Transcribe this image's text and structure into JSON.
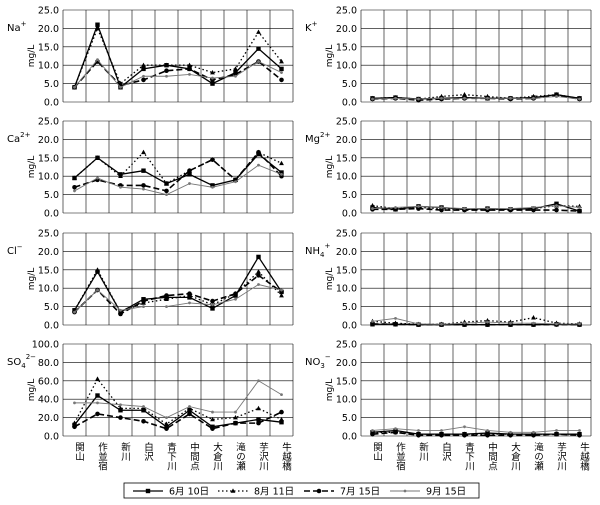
{
  "figure": {
    "legend": [
      {
        "name": "6月 10日",
        "style": "solid-square"
      },
      {
        "name": "8月 11日",
        "style": "dotted-triangle"
      },
      {
        "name": "7月 15日",
        "style": "dashed-circle"
      },
      {
        "name": "9月 15日",
        "style": "light-dot"
      }
    ],
    "colors": {
      "series_main": "#000000",
      "series_light": "#777777",
      "grid": "#000000"
    }
  },
  "chart_data": [
    {
      "type": "line",
      "ion": "Na",
      "ion_sup": "+",
      "ion_sub": "",
      "ylabel": "mg/L",
      "ylim": [
        0,
        25
      ],
      "yticks": [
        "0.0",
        "5.0",
        "10.0",
        "15.0",
        "20.0",
        "25.0"
      ],
      "categories": [
        "関山",
        "作並宿",
        "新川",
        "白沢",
        "青下川",
        "中間点",
        "大倉川",
        "滝の瀬",
        "芋沢川",
        "牛越橋"
      ],
      "show_xlabels": false,
      "series": [
        {
          "name": "6月 10日",
          "values": [
            4.0,
            21.0,
            4.0,
            9.0,
            10.0,
            9.0,
            5.0,
            8.0,
            14.5,
            9.0
          ]
        },
        {
          "name": "8月 11日",
          "values": [
            4.0,
            20.0,
            5.0,
            10.0,
            10.0,
            10.0,
            8.0,
            9.0,
            19.0,
            11.0
          ]
        },
        {
          "name": "7月 15日",
          "values": [
            4.0,
            11.0,
            4.5,
            6.0,
            8.5,
            9.0,
            6.0,
            7.5,
            11.0,
            6.0
          ]
        },
        {
          "name": "9月 15日",
          "values": [
            4.0,
            11.5,
            4.0,
            7.0,
            7.0,
            7.5,
            6.5,
            7.0,
            11.0,
            8.0
          ]
        }
      ]
    },
    {
      "type": "line",
      "ion": "K",
      "ion_sup": "+",
      "ion_sub": "",
      "ylabel": "mg/L",
      "ylim": [
        0,
        25
      ],
      "yticks": [
        "0.0",
        "5.0",
        "10.0",
        "15.0",
        "20.0",
        "25.0"
      ],
      "categories": [
        "関山",
        "作並宿",
        "新川",
        "白沢",
        "青下川",
        "中間点",
        "大倉川",
        "滝の瀬",
        "芋沢川",
        "牛越橋"
      ],
      "show_xlabels": false,
      "series": [
        {
          "name": "6月 10日",
          "values": [
            1.0,
            1.2,
            0.8,
            1.0,
            1.2,
            1.0,
            1.0,
            1.2,
            2.0,
            1.0
          ]
        },
        {
          "name": "8月 11日",
          "values": [
            1.0,
            1.2,
            0.8,
            1.5,
            2.0,
            1.5,
            1.0,
            1.5,
            2.0,
            1.0
          ]
        },
        {
          "name": "7月 15日",
          "values": [
            0.8,
            1.0,
            0.5,
            0.8,
            1.0,
            1.0,
            0.8,
            1.0,
            1.8,
            0.8
          ]
        },
        {
          "name": "9月 15日",
          "values": [
            0.8,
            1.0,
            0.8,
            1.0,
            1.0,
            1.0,
            1.0,
            1.0,
            1.5,
            0.8
          ]
        }
      ]
    },
    {
      "type": "line",
      "ion": "Ca",
      "ion_sup": "2+",
      "ion_sub": "",
      "ylabel": "mg/L",
      "ylim": [
        0,
        25
      ],
      "yticks": [
        "0.0",
        "5.0",
        "10.0",
        "15.0",
        "20.0",
        "25.0"
      ],
      "categories": [
        "関山",
        "作並宿",
        "新川",
        "白沢",
        "青下川",
        "中間点",
        "大倉川",
        "滝の瀬",
        "芋沢川",
        "牛越橋"
      ],
      "show_xlabels": false,
      "series": [
        {
          "name": "6月 10日",
          "values": [
            9.5,
            15.0,
            10.5,
            11.5,
            8.0,
            10.5,
            7.5,
            9.0,
            16.0,
            11.0
          ]
        },
        {
          "name": "8月 11日",
          "values": [
            9.5,
            15.0,
            10.0,
            16.5,
            8.0,
            11.5,
            14.5,
            9.0,
            16.5,
            13.5
          ]
        },
        {
          "name": "7月 15日",
          "values": [
            7.0,
            9.0,
            7.5,
            7.5,
            6.0,
            11.5,
            14.5,
            9.0,
            16.5,
            10.0
          ]
        },
        {
          "name": "9月 15日",
          "values": [
            6.0,
            9.5,
            7.0,
            6.5,
            5.0,
            8.0,
            7.0,
            8.5,
            13.0,
            10.5
          ]
        }
      ]
    },
    {
      "type": "line",
      "ion": "Mg",
      "ion_sup": "2+",
      "ion_sub": "",
      "ylabel": "mg/L",
      "ylim": [
        0,
        25
      ],
      "yticks": [
        "0.0",
        "5.0",
        "10.0",
        "15.0",
        "20.0",
        "25.0"
      ],
      "categories": [
        "関山",
        "作並宿",
        "新川",
        "白沢",
        "青下川",
        "中間点",
        "大倉川",
        "滝の瀬",
        "芋沢川",
        "牛越橋"
      ],
      "show_xlabels": false,
      "series": [
        {
          "name": "6月 10日",
          "values": [
            1.5,
            1.0,
            1.8,
            1.5,
            1.0,
            1.2,
            1.0,
            1.2,
            2.5,
            0.5
          ]
        },
        {
          "name": "8月 11日",
          "values": [
            2.0,
            1.2,
            1.5,
            1.2,
            1.0,
            1.0,
            1.0,
            1.2,
            2.0,
            1.8
          ]
        },
        {
          "name": "7月 15日",
          "values": [
            1.0,
            1.0,
            1.2,
            0.8,
            0.8,
            0.8,
            0.8,
            0.8,
            0.8,
            0.5
          ]
        },
        {
          "name": "9月 15日",
          "values": [
            1.2,
            1.5,
            1.8,
            1.5,
            1.2,
            1.2,
            1.2,
            1.5,
            2.0,
            1.5
          ]
        }
      ]
    },
    {
      "type": "line",
      "ion": "Cl",
      "ion_sup": "−",
      "ion_sub": "",
      "ylabel": "mg/L",
      "ylim": [
        0,
        25
      ],
      "yticks": [
        "0.0",
        "5.0",
        "10.0",
        "15.0",
        "20.0",
        "25.0"
      ],
      "categories": [
        "関山",
        "作並宿",
        "新川",
        "白沢",
        "青下川",
        "中間点",
        "大倉川",
        "滝の瀬",
        "芋沢川",
        "牛越橋"
      ],
      "show_xlabels": false,
      "series": [
        {
          "name": "6月 10日",
          "values": [
            4.0,
            14.5,
            3.5,
            7.0,
            7.5,
            7.5,
            4.5,
            8.0,
            18.5,
            9.0
          ]
        },
        {
          "name": "8月 11日",
          "values": [
            4.0,
            15.0,
            3.5,
            6.0,
            7.0,
            8.0,
            5.5,
            8.5,
            14.5,
            8.0
          ]
        },
        {
          "name": "7月 15日",
          "values": [
            3.5,
            9.5,
            3.0,
            6.5,
            8.0,
            8.5,
            6.5,
            8.5,
            13.5,
            9.0
          ]
        },
        {
          "name": "9月 15日",
          "values": [
            3.5,
            9.5,
            4.0,
            5.0,
            5.0,
            6.0,
            5.5,
            7.0,
            11.0,
            9.5
          ]
        }
      ]
    },
    {
      "type": "line",
      "ion": "NH",
      "ion_sup": "+",
      "ion_sub": "4",
      "ylabel": "mg/L",
      "ylim": [
        0,
        25
      ],
      "yticks": [
        "0.0",
        "5.0",
        "10.0",
        "15.0",
        "20.0",
        "25.0"
      ],
      "categories": [
        "関山",
        "作並宿",
        "新川",
        "白沢",
        "青下川",
        "中間点",
        "大倉川",
        "滝の瀬",
        "芋沢川",
        "牛越橋"
      ],
      "show_xlabels": false,
      "series": [
        {
          "name": "6月 10日",
          "values": [
            0.2,
            0.2,
            0.1,
            0.1,
            0.1,
            0.1,
            0.1,
            0.1,
            0.2,
            0.1
          ]
        },
        {
          "name": "8月 11日",
          "values": [
            1.0,
            0.5,
            0.2,
            0.2,
            0.8,
            1.2,
            0.8,
            2.0,
            0.5,
            0.3
          ]
        },
        {
          "name": "7月 15日",
          "values": [
            0.3,
            0.2,
            0.1,
            0.1,
            0.1,
            0.1,
            0.1,
            0.1,
            0.1,
            0.1
          ]
        },
        {
          "name": "9月 15日",
          "values": [
            1.0,
            1.8,
            0.3,
            0.2,
            0.5,
            0.8,
            0.5,
            0.5,
            0.3,
            0.3
          ]
        }
      ]
    },
    {
      "type": "line",
      "ion": "SO",
      "ion_sup": "2−",
      "ion_sub": "4",
      "ylabel": "mg/L",
      "ylim": [
        0,
        100
      ],
      "yticks": [
        "0.0",
        "20.0",
        "40.0",
        "60.0",
        "80.0",
        "100.0"
      ],
      "categories": [
        "関山",
        "作並宿",
        "新川",
        "白沢",
        "青下川",
        "中間点",
        "大倉川",
        "滝の瀬",
        "芋沢川",
        "牛越橋"
      ],
      "show_xlabels": true,
      "series": [
        {
          "name": "6月 10日",
          "values": [
            12,
            44,
            28,
            28,
            10,
            28,
            10,
            14,
            18,
            15
          ]
        },
        {
          "name": "8月 11日",
          "values": [
            14,
            62,
            30,
            30,
            13,
            30,
            18,
            20,
            30,
            18
          ]
        },
        {
          "name": "7月 15日",
          "values": [
            10,
            24,
            20,
            16,
            8,
            24,
            8,
            14,
            14,
            26
          ]
        },
        {
          "name": "9月 15日",
          "values": [
            36,
            36,
            34,
            32,
            20,
            32,
            26,
            26,
            60,
            45
          ]
        }
      ]
    },
    {
      "type": "line",
      "ion": "NO",
      "ion_sup": "−",
      "ion_sub": "3",
      "ylabel": "mg/L",
      "ylim": [
        0,
        25
      ],
      "yticks": [
        "0.0",
        "5.0",
        "10.0",
        "15.0",
        "20.0",
        "25.0"
      ],
      "categories": [
        "関山",
        "作並宿",
        "新川",
        "白沢",
        "青下川",
        "中間点",
        "大倉川",
        "滝の瀬",
        "芋沢川",
        "牛越橋"
      ],
      "show_xlabels": true,
      "series": [
        {
          "name": "6月 10日",
          "values": [
            1.0,
            1.5,
            0.5,
            0.5,
            0.5,
            0.8,
            0.5,
            0.5,
            0.5,
            0.5
          ]
        },
        {
          "name": "8月 11日",
          "values": [
            1.0,
            1.0,
            0.5,
            0.5,
            0.5,
            0.5,
            0.5,
            0.5,
            0.5,
            0.5
          ]
        },
        {
          "name": "7月 15日",
          "values": [
            0.5,
            1.0,
            0.2,
            0.2,
            0.2,
            0.2,
            0.2,
            0.2,
            0.5,
            0.2
          ]
        },
        {
          "name": "9月 15日",
          "values": [
            1.5,
            2.0,
            1.5,
            1.5,
            2.5,
            1.5,
            1.0,
            1.0,
            1.5,
            1.5
          ]
        }
      ]
    }
  ]
}
